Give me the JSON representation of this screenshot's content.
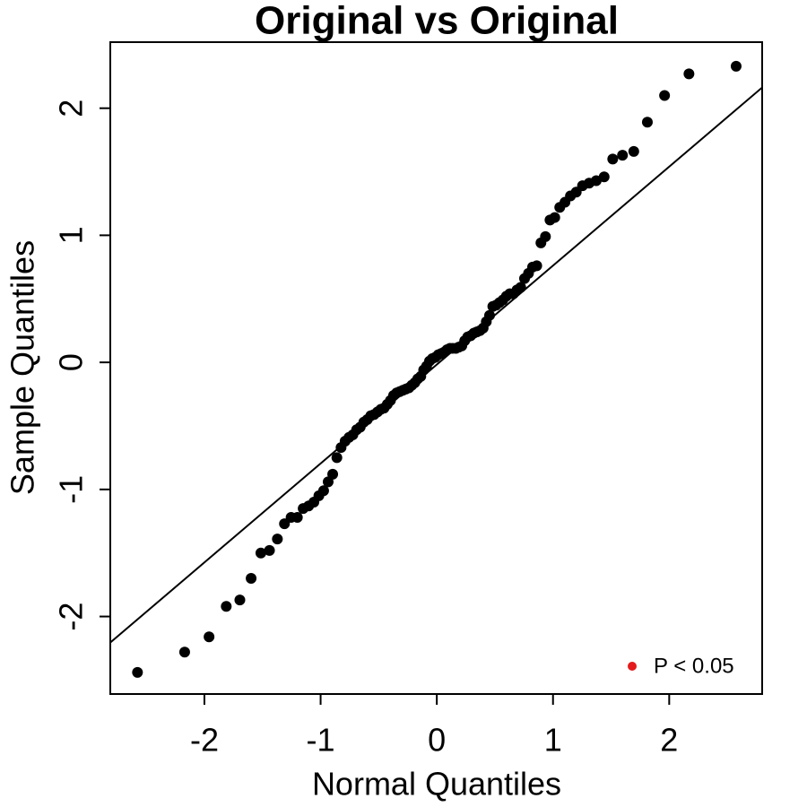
{
  "chart_data": {
    "type": "scatter",
    "title": "Original vs Original",
    "x_label": "Normal Quantiles",
    "y_label": "Sample Quantiles",
    "xlim": [
      -2.81,
      2.8
    ],
    "ylim": [
      -2.61,
      2.52
    ],
    "xticks": [
      -2,
      -1,
      0,
      1,
      2
    ],
    "yticks": [
      -2,
      -1,
      0,
      1,
      2
    ],
    "series": [
      {
        "color": "#000000",
        "x": [
          -2.576,
          -2.17,
          -1.96,
          -1.812,
          -1.695,
          -1.598,
          -1.514,
          -1.44,
          -1.372,
          -1.311,
          -1.254,
          -1.2,
          -1.15,
          -1.103,
          -1.058,
          -1.015,
          -0.974,
          -0.935,
          -0.896,
          -0.86,
          -0.824,
          -0.789,
          -0.755,
          -0.722,
          -0.69,
          -0.659,
          -0.628,
          -0.598,
          -0.568,
          -0.539,
          -0.51,
          -0.482,
          -0.454,
          -0.426,
          -0.399,
          -0.372,
          -0.345,
          -0.319,
          -0.292,
          -0.266,
          -0.24,
          -0.215,
          -0.189,
          -0.164,
          -0.138,
          -0.113,
          -0.088,
          -0.063,
          -0.038,
          -0.013,
          0.013,
          0.038,
          0.063,
          0.088,
          0.113,
          0.138,
          0.164,
          0.189,
          0.215,
          0.24,
          0.266,
          0.292,
          0.319,
          0.345,
          0.372,
          0.399,
          0.426,
          0.454,
          0.482,
          0.51,
          0.539,
          0.568,
          0.598,
          0.628,
          0.659,
          0.69,
          0.722,
          0.755,
          0.789,
          0.824,
          0.86,
          0.896,
          0.935,
          0.974,
          1.015,
          1.058,
          1.103,
          1.15,
          1.2,
          1.254,
          1.311,
          1.372,
          1.44,
          1.514,
          1.598,
          1.695,
          1.812,
          1.96,
          2.17,
          2.576
        ],
        "y": [
          -2.44,
          -2.28,
          -2.16,
          -1.92,
          -1.87,
          -1.7,
          -1.5,
          -1.48,
          -1.39,
          -1.27,
          -1.22,
          -1.22,
          -1.15,
          -1.13,
          -1.1,
          -1.05,
          -1.01,
          -0.94,
          -0.88,
          -0.75,
          -0.67,
          -0.62,
          -0.59,
          -0.57,
          -0.53,
          -0.51,
          -0.47,
          -0.45,
          -0.42,
          -0.41,
          -0.39,
          -0.37,
          -0.36,
          -0.33,
          -0.3,
          -0.26,
          -0.24,
          -0.23,
          -0.22,
          -0.21,
          -0.2,
          -0.18,
          -0.16,
          -0.13,
          -0.11,
          -0.06,
          -0.03,
          0.01,
          0.03,
          0.04,
          0.06,
          0.07,
          0.08,
          0.1,
          0.11,
          0.11,
          0.11,
          0.12,
          0.13,
          0.17,
          0.2,
          0.21,
          0.23,
          0.24,
          0.25,
          0.27,
          0.32,
          0.37,
          0.44,
          0.45,
          0.47,
          0.49,
          0.52,
          0.54,
          0.54,
          0.57,
          0.59,
          0.66,
          0.7,
          0.75,
          0.76,
          0.94,
          0.99,
          1.12,
          1.14,
          1.22,
          1.26,
          1.31,
          1.34,
          1.39,
          1.41,
          1.43,
          1.46,
          1.6,
          1.63,
          1.66,
          1.89,
          2.1,
          2.27,
          2.33
        ]
      }
    ],
    "reference_line": {
      "x": [
        -2.81,
        2.8
      ],
      "y": [
        -2.205,
        2.163
      ],
      "color": "#000000"
    },
    "legend": {
      "label": "P < 0.05",
      "color": "#e41a1c",
      "position": "bottom-right"
    }
  }
}
